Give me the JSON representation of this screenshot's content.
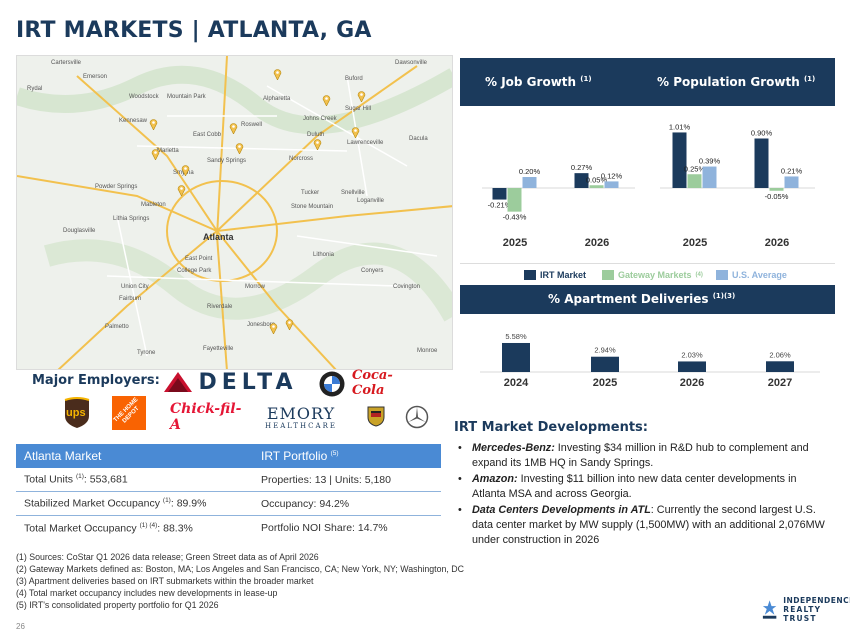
{
  "title": "IRT MARKETS | ATLANTA, GA",
  "map": {
    "city_label": "Atlanta",
    "places": [
      "Cartersville",
      "Emerson",
      "Rydal",
      "Woodstock",
      "Mountain Park",
      "Alpharetta",
      "Buford",
      "Dawsonville",
      "Kennesaw",
      "Roswell",
      "Johns Creek",
      "Duluth",
      "Sugar Hill",
      "Marietta",
      "East Cobb",
      "Sandy Springs",
      "Norcross",
      "Lawrenceville",
      "Dacula",
      "Smyrna",
      "Tucker",
      "Snellville",
      "Powder Springs",
      "Mableton",
      "Stone Mountain",
      "Loganville",
      "Lithia Springs",
      "Douglasville",
      "East Point",
      "Lithonia",
      "Conyers",
      "Union City",
      "College Park",
      "Morrow",
      "Covington",
      "Fairburn",
      "Riverdale",
      "Palmetto",
      "Jonesboro",
      "Tyrone",
      "Fayetteville",
      "Monroe"
    ]
  },
  "panel": {
    "job_title": "% Job Growth",
    "job_sup": "(1)",
    "pop_title": "% Population Growth",
    "pop_sup": "(1)",
    "deliv_title": "% Apartment Deliveries",
    "deliv_sup": "(1)(3)"
  },
  "chart_data": [
    {
      "type": "bar",
      "title": "% Job Growth (1)",
      "categories": [
        "2025",
        "2026"
      ],
      "series": [
        {
          "name": "IRT Market",
          "values": [
            -0.21,
            0.27
          ]
        },
        {
          "name": "Gateway Markets (4)",
          "values": [
            -0.43,
            0.05
          ]
        },
        {
          "name": "U.S. Average",
          "values": [
            0.2,
            0.12
          ]
        }
      ],
      "labels": [
        [
          "-0.21%",
          "0.27%"
        ],
        [
          "-0.43%",
          "0.05%"
        ],
        [
          "0.20%",
          "0.12%"
        ]
      ],
      "ylim": [
        -0.6,
        1.2
      ]
    },
    {
      "type": "bar",
      "title": "% Population Growth (1)",
      "categories": [
        "2025",
        "2026"
      ],
      "series": [
        {
          "name": "IRT Market",
          "values": [
            1.01,
            0.9
          ]
        },
        {
          "name": "Gateway Markets (4)",
          "values": [
            0.25,
            -0.05
          ]
        },
        {
          "name": "U.S. Average",
          "values": [
            0.39,
            0.21
          ]
        }
      ],
      "labels": [
        [
          "1.01%",
          "0.90%"
        ],
        [
          "0.25%",
          "-0.05%"
        ],
        [
          "0.39%",
          "0.21%"
        ]
      ],
      "ylim": [
        -0.6,
        1.2
      ]
    },
    {
      "type": "bar",
      "title": "% Apartment Deliveries (1)(3)",
      "categories": [
        "2024",
        "2025",
        "2026",
        "2027"
      ],
      "values": [
        5.58,
        2.94,
        2.03,
        2.06
      ],
      "labels": [
        "5.58%",
        "2.94%",
        "2.03%",
        "2.06%"
      ],
      "ylim": [
        0,
        6
      ]
    }
  ],
  "legend": {
    "irt": "IRT Market",
    "gateway": "Gateway Markets",
    "gateway_sup": "(4)",
    "us": "U.S. Average"
  },
  "colors": {
    "navy": "#1b3a5c",
    "gateway": "#9ccc9c",
    "us": "#8fb3dc",
    "table_header": "#4a8ad4"
  },
  "employers": {
    "label": "Major Employers:",
    "delta": "DELTA",
    "emory": "EMORY",
    "emory_sub": "HEALTHCARE",
    "ups": "ups",
    "home_depot": "THE HOME DEPOT",
    "chick": "Chick-fil-A",
    "coca": "Coca-Cola"
  },
  "table": {
    "h1": "Atlanta Market",
    "h2": "IRT Portfolio",
    "h2_sup": "(5)",
    "rows": [
      {
        "a": "Total Units",
        "a_sup": "(1)",
        "a_val": ": 553,681",
        "b": "Properties: 13 | Units: 5,180"
      },
      {
        "a": "Stabilized Market Occupancy",
        "a_sup": "(1)",
        "a_val": ": 89.9%",
        "b": "Occupancy: 94.2%"
      },
      {
        "a": "Total Market Occupancy",
        "a_sup": "(1) (4)",
        "a_val": ": 88.3%",
        "b": "Portfolio NOI Share: 14.7%"
      }
    ]
  },
  "developments": {
    "title": "IRT Market Developments:",
    "items": [
      {
        "lead": "Mercedes-Benz:",
        "text": " Investing $34 million in R&D hub to complement and expand its 1MB HQ in Sandy Springs."
      },
      {
        "lead": "Amazon:",
        "text": " Investing $11 billion into new data center developments in Atlanta MSA and across Georgia."
      },
      {
        "lead": "Data Centers Developments in ATL",
        "text": ": Currently the second largest U.S. data center market by MW supply (1,500MW) with an additional 2,076MW under construction in 2026"
      }
    ]
  },
  "footnotes": [
    "(1)  Sources: CoStar Q1 2026 data release; Green Street data as of April 2026",
    "(2)  Gateway Markets defined as: Boston, MA; Los Angeles and San Francisco, CA; New York, NY; Washington, DC",
    "(3)  Apartment deliveries based on IRT submarkets within the broader market",
    "(4)  Total market occupancy includes new developments in lease-up",
    "(5)  IRT's consolidated property portfolio for Q1 2026"
  ],
  "page_number": "26",
  "brand": {
    "line1": "INDEPENDENCE",
    "line2": "REALTY TRUST"
  }
}
